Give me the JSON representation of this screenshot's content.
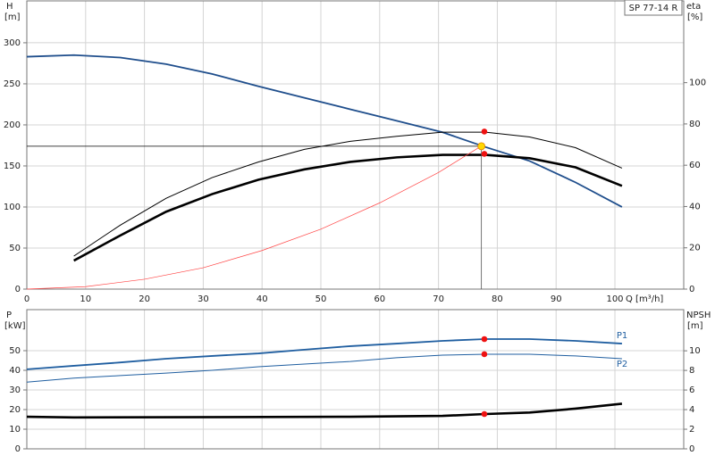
{
  "chart_data": [
    {
      "type": "line",
      "title": "SP 77-14 R",
      "x_label": "Q [m³/h]",
      "y_label": "H",
      "y_unit": "[m]",
      "y2_label": "eta",
      "y2_unit": "[%]",
      "xlim": [
        0,
        111.7
      ],
      "xticks": [
        0,
        10,
        20,
        30,
        40,
        50,
        60,
        70,
        80,
        90,
        100
      ],
      "ylim": [
        0,
        351
      ],
      "yticks": [
        0,
        50,
        100,
        150,
        200,
        250,
        300
      ],
      "y2lim": [
        0,
        139.6
      ],
      "y2ticks": [
        0,
        20,
        40,
        60,
        80,
        100
      ],
      "grid": true,
      "series": [
        {
          "color": "#1f4e8c",
          "style": "medium",
          "x": [
            0,
            8,
            15.9,
            23.7,
            31.5,
            39.4,
            47.2,
            55,
            62.9,
            70.7,
            78,
            85.5,
            93.3,
            101.2
          ],
          "values": [
            283,
            285,
            282,
            274,
            262,
            247,
            233,
            219,
            205,
            191,
            173,
            156,
            130,
            100
          ]
        },
        {
          "color": "#000000",
          "style": "thin",
          "axis": "y2",
          "x": [
            8,
            15.9,
            23.7,
            31.5,
            39.4,
            47.2,
            55,
            62.9,
            70.7,
            78,
            85.5,
            93.3,
            101.2
          ],
          "values": [
            16,
            31,
            44,
            54,
            61.6,
            67.7,
            71.6,
            74,
            76,
            76,
            73.7,
            68.5,
            58.6
          ]
        },
        {
          "color": "#000000",
          "style": "thick",
          "axis": "y2",
          "x": [
            8,
            15.9,
            23.7,
            31.5,
            39.4,
            47.2,
            55,
            62.9,
            70.7,
            78,
            85.5,
            93.3,
            101.2
          ],
          "values": [
            13.8,
            26,
            37.5,
            46,
            53,
            58,
            61.6,
            63.8,
            65,
            65,
            63.4,
            59,
            50
          ]
        },
        {
          "color": "#ff4444",
          "style": "hair",
          "x": [
            0,
            10,
            20,
            30,
            40,
            50,
            60,
            70,
            77
          ],
          "values": [
            0,
            3,
            12,
            26,
            47,
            73,
            105,
            142,
            173
          ]
        }
      ],
      "duty_point": {
        "x": 77.3,
        "y": 174,
        "color": "#ffd700"
      },
      "markers": [
        {
          "x": 77.8,
          "value": 76.3,
          "axis": "y2"
        },
        {
          "x": 77.8,
          "value": 65.5,
          "axis": "y2"
        }
      ],
      "marker_color": "#ee1111"
    },
    {
      "type": "line",
      "y_label": "P",
      "y_unit": "[kW]",
      "y2_label": "NPSH",
      "y2_unit": "[m]",
      "xlim": [
        0,
        111.7
      ],
      "ylim": [
        0,
        70.9
      ],
      "yticks": [
        0,
        10,
        20,
        30,
        40,
        50
      ],
      "y2lim": [
        0,
        14.2
      ],
      "y2ticks": [
        0,
        2,
        4,
        6,
        8,
        10
      ],
      "grid": true,
      "series": [
        {
          "label": "P1",
          "color": "#1f5ea0",
          "style": "medium",
          "x": [
            0,
            8,
            15.9,
            23.7,
            31.5,
            39.4,
            47.2,
            55,
            62.9,
            70.7,
            78,
            85.5,
            93.3,
            101.2
          ],
          "values": [
            40.5,
            42.3,
            44,
            45.9,
            47.3,
            48.6,
            50.5,
            52.3,
            53.6,
            55,
            55.9,
            55.9,
            55,
            53.6
          ]
        },
        {
          "label": "P2",
          "color": "#1f5ea0",
          "style": "thin",
          "x": [
            0,
            8,
            15.9,
            23.7,
            31.5,
            39.4,
            47.2,
            55,
            62.9,
            70.7,
            78,
            85.5,
            93.3,
            101.2
          ],
          "values": [
            34,
            36,
            37.3,
            38.6,
            40,
            41.8,
            43.2,
            44.5,
            46.4,
            47.7,
            48.2,
            48.2,
            47.3,
            45.9
          ]
        },
        {
          "color": "#000000",
          "style": "thick",
          "axis": "y2",
          "x": [
            0,
            8,
            55,
            70.7,
            78,
            85.5,
            93.3,
            101.2
          ],
          "values": [
            3.27,
            3.2,
            3.27,
            3.36,
            3.55,
            3.7,
            4.1,
            4.6
          ]
        }
      ],
      "markers": [
        {
          "x": 77.8,
          "value": 55.9
        },
        {
          "x": 77.8,
          "value": 48.2
        },
        {
          "x": 77.8,
          "value": 3.55,
          "axis": "y2"
        }
      ],
      "marker_color": "#ee1111"
    }
  ]
}
